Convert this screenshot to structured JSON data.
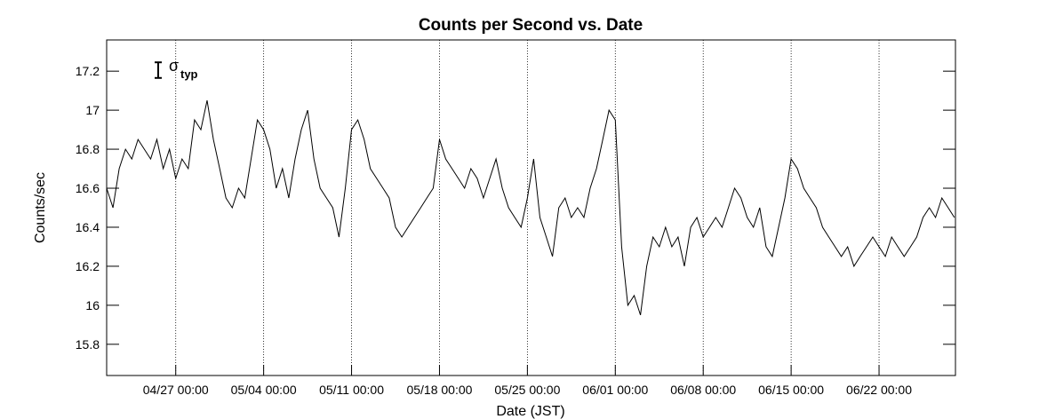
{
  "chart_data": {
    "type": "line",
    "title": "Counts per Second vs. Date",
    "x_label": "Date (JST)",
    "y_label": "Counts/sec",
    "color": "#000000",
    "annotation": {
      "symbol": "σ",
      "subscript": "typ",
      "error": 0.04
    },
    "xlim": [
      "04/21 12:00",
      "06/28 02:00"
    ],
    "xticks": [
      "04/27 00:00",
      "05/04 00:00",
      "05/11 00:00",
      "05/18 00:00",
      "05/25 00:00",
      "06/01 00:00",
      "06/08 00:00",
      "06/15 00:00",
      "06/22 00:00"
    ],
    "ylim": [
      15.64,
      17.36
    ],
    "yticks": [
      15.8,
      16,
      16.2,
      16.4,
      16.6,
      16.8,
      17,
      17.2
    ],
    "grid": {
      "x": true,
      "y": false
    },
    "x": [
      "04/21 12:00",
      "04/22 00:00",
      "04/22 12:00",
      "04/23 00:00",
      "04/23 12:00",
      "04/24 00:00",
      "04/24 12:00",
      "04/25 00:00",
      "04/25 12:00",
      "04/26 00:00",
      "04/26 12:00",
      "04/27 00:00",
      "04/27 12:00",
      "04/28 00:00",
      "04/28 12:00",
      "04/29 00:00",
      "04/29 12:00",
      "04/30 00:00",
      "04/30 12:00",
      "05/01 00:00",
      "05/01 12:00",
      "05/02 00:00",
      "05/02 12:00",
      "05/03 00:00",
      "05/03 12:00",
      "05/04 00:00",
      "05/04 12:00",
      "05/05 00:00",
      "05/05 12:00",
      "05/06 00:00",
      "05/06 12:00",
      "05/07 00:00",
      "05/07 12:00",
      "05/08 00:00",
      "05/08 12:00",
      "05/09 00:00",
      "05/09 12:00",
      "05/10 00:00",
      "05/10 12:00",
      "05/11 00:00",
      "05/11 12:00",
      "05/12 00:00",
      "05/12 12:00",
      "05/13 00:00",
      "05/13 12:00",
      "05/14 00:00",
      "05/14 12:00",
      "05/15 00:00",
      "05/15 12:00",
      "05/16 00:00",
      "05/16 12:00",
      "05/17 00:00",
      "05/17 12:00",
      "05/18 00:00",
      "05/18 12:00",
      "05/19 00:00",
      "05/19 12:00",
      "05/20 00:00",
      "05/20 12:00",
      "05/21 00:00",
      "05/21 12:00",
      "05/22 00:00",
      "05/22 12:00",
      "05/23 00:00",
      "05/23 12:00",
      "05/24 00:00",
      "05/24 12:00",
      "05/25 00:00",
      "05/25 12:00",
      "05/26 00:00",
      "05/26 12:00",
      "05/27 00:00",
      "05/27 12:00",
      "05/28 00:00",
      "05/28 12:00",
      "05/29 00:00",
      "05/29 12:00",
      "05/30 00:00",
      "05/30 12:00",
      "05/31 00:00",
      "05/31 12:00",
      "06/01 00:00",
      "06/01 12:00",
      "06/02 00:00",
      "06/02 12:00",
      "06/03 00:00",
      "06/03 12:00",
      "06/04 00:00",
      "06/04 12:00",
      "06/05 00:00",
      "06/05 12:00",
      "06/06 00:00",
      "06/06 12:00",
      "06/07 00:00",
      "06/07 12:00",
      "06/08 00:00",
      "06/08 12:00",
      "06/09 00:00",
      "06/09 12:00",
      "06/10 00:00",
      "06/10 12:00",
      "06/11 00:00",
      "06/11 12:00",
      "06/12 00:00",
      "06/12 12:00",
      "06/13 00:00",
      "06/13 12:00",
      "06/14 00:00",
      "06/14 12:00",
      "06/15 00:00",
      "06/15 12:00",
      "06/16 00:00",
      "06/16 12:00",
      "06/17 00:00",
      "06/17 12:00",
      "06/18 00:00",
      "06/18 12:00",
      "06/19 00:00",
      "06/19 12:00",
      "06/20 00:00",
      "06/20 12:00",
      "06/21 00:00",
      "06/21 12:00",
      "06/22 00:00",
      "06/22 12:00",
      "06/23 00:00",
      "06/23 12:00",
      "06/24 00:00",
      "06/24 12:00",
      "06/25 00:00",
      "06/25 12:00",
      "06/26 00:00",
      "06/26 12:00",
      "06/27 00:00",
      "06/27 12:00",
      "06/28 00:00"
    ],
    "values": [
      16.6,
      16.5,
      16.7,
      16.8,
      16.75,
      16.85,
      16.8,
      16.75,
      16.85,
      16.7,
      16.8,
      16.65,
      16.75,
      16.7,
      16.95,
      16.9,
      17.05,
      16.85,
      16.7,
      16.55,
      16.5,
      16.6,
      16.55,
      16.75,
      16.95,
      16.9,
      16.8,
      16.6,
      16.7,
      16.55,
      16.75,
      16.9,
      17.0,
      16.75,
      16.6,
      16.55,
      16.5,
      16.35,
      16.6,
      16.9,
      16.95,
      16.85,
      16.7,
      16.65,
      16.6,
      16.55,
      16.4,
      16.35,
      16.4,
      16.45,
      16.5,
      16.55,
      16.6,
      16.85,
      16.75,
      16.7,
      16.65,
      16.6,
      16.7,
      16.65,
      16.55,
      16.65,
      16.75,
      16.6,
      16.5,
      16.45,
      16.4,
      16.55,
      16.75,
      16.45,
      16.35,
      16.25,
      16.5,
      16.55,
      16.45,
      16.5,
      16.45,
      16.6,
      16.7,
      16.85,
      17.0,
      16.95,
      16.3,
      16.0,
      16.05,
      15.95,
      16.2,
      16.35,
      16.3,
      16.4,
      16.3,
      16.35,
      16.2,
      16.4,
      16.45,
      16.35,
      16.4,
      16.45,
      16.4,
      16.5,
      16.6,
      16.55,
      16.45,
      16.4,
      16.5,
      16.3,
      16.25,
      16.4,
      16.55,
      16.75,
      16.7,
      16.6,
      16.55,
      16.5,
      16.4,
      16.35,
      16.3,
      16.25,
      16.3,
      16.2,
      16.25,
      16.3,
      16.35,
      16.3,
      16.25,
      16.35,
      16.3,
      16.25,
      16.3,
      16.35,
      16.45,
      16.5,
      16.45,
      16.55,
      16.5,
      16.45
    ]
  }
}
